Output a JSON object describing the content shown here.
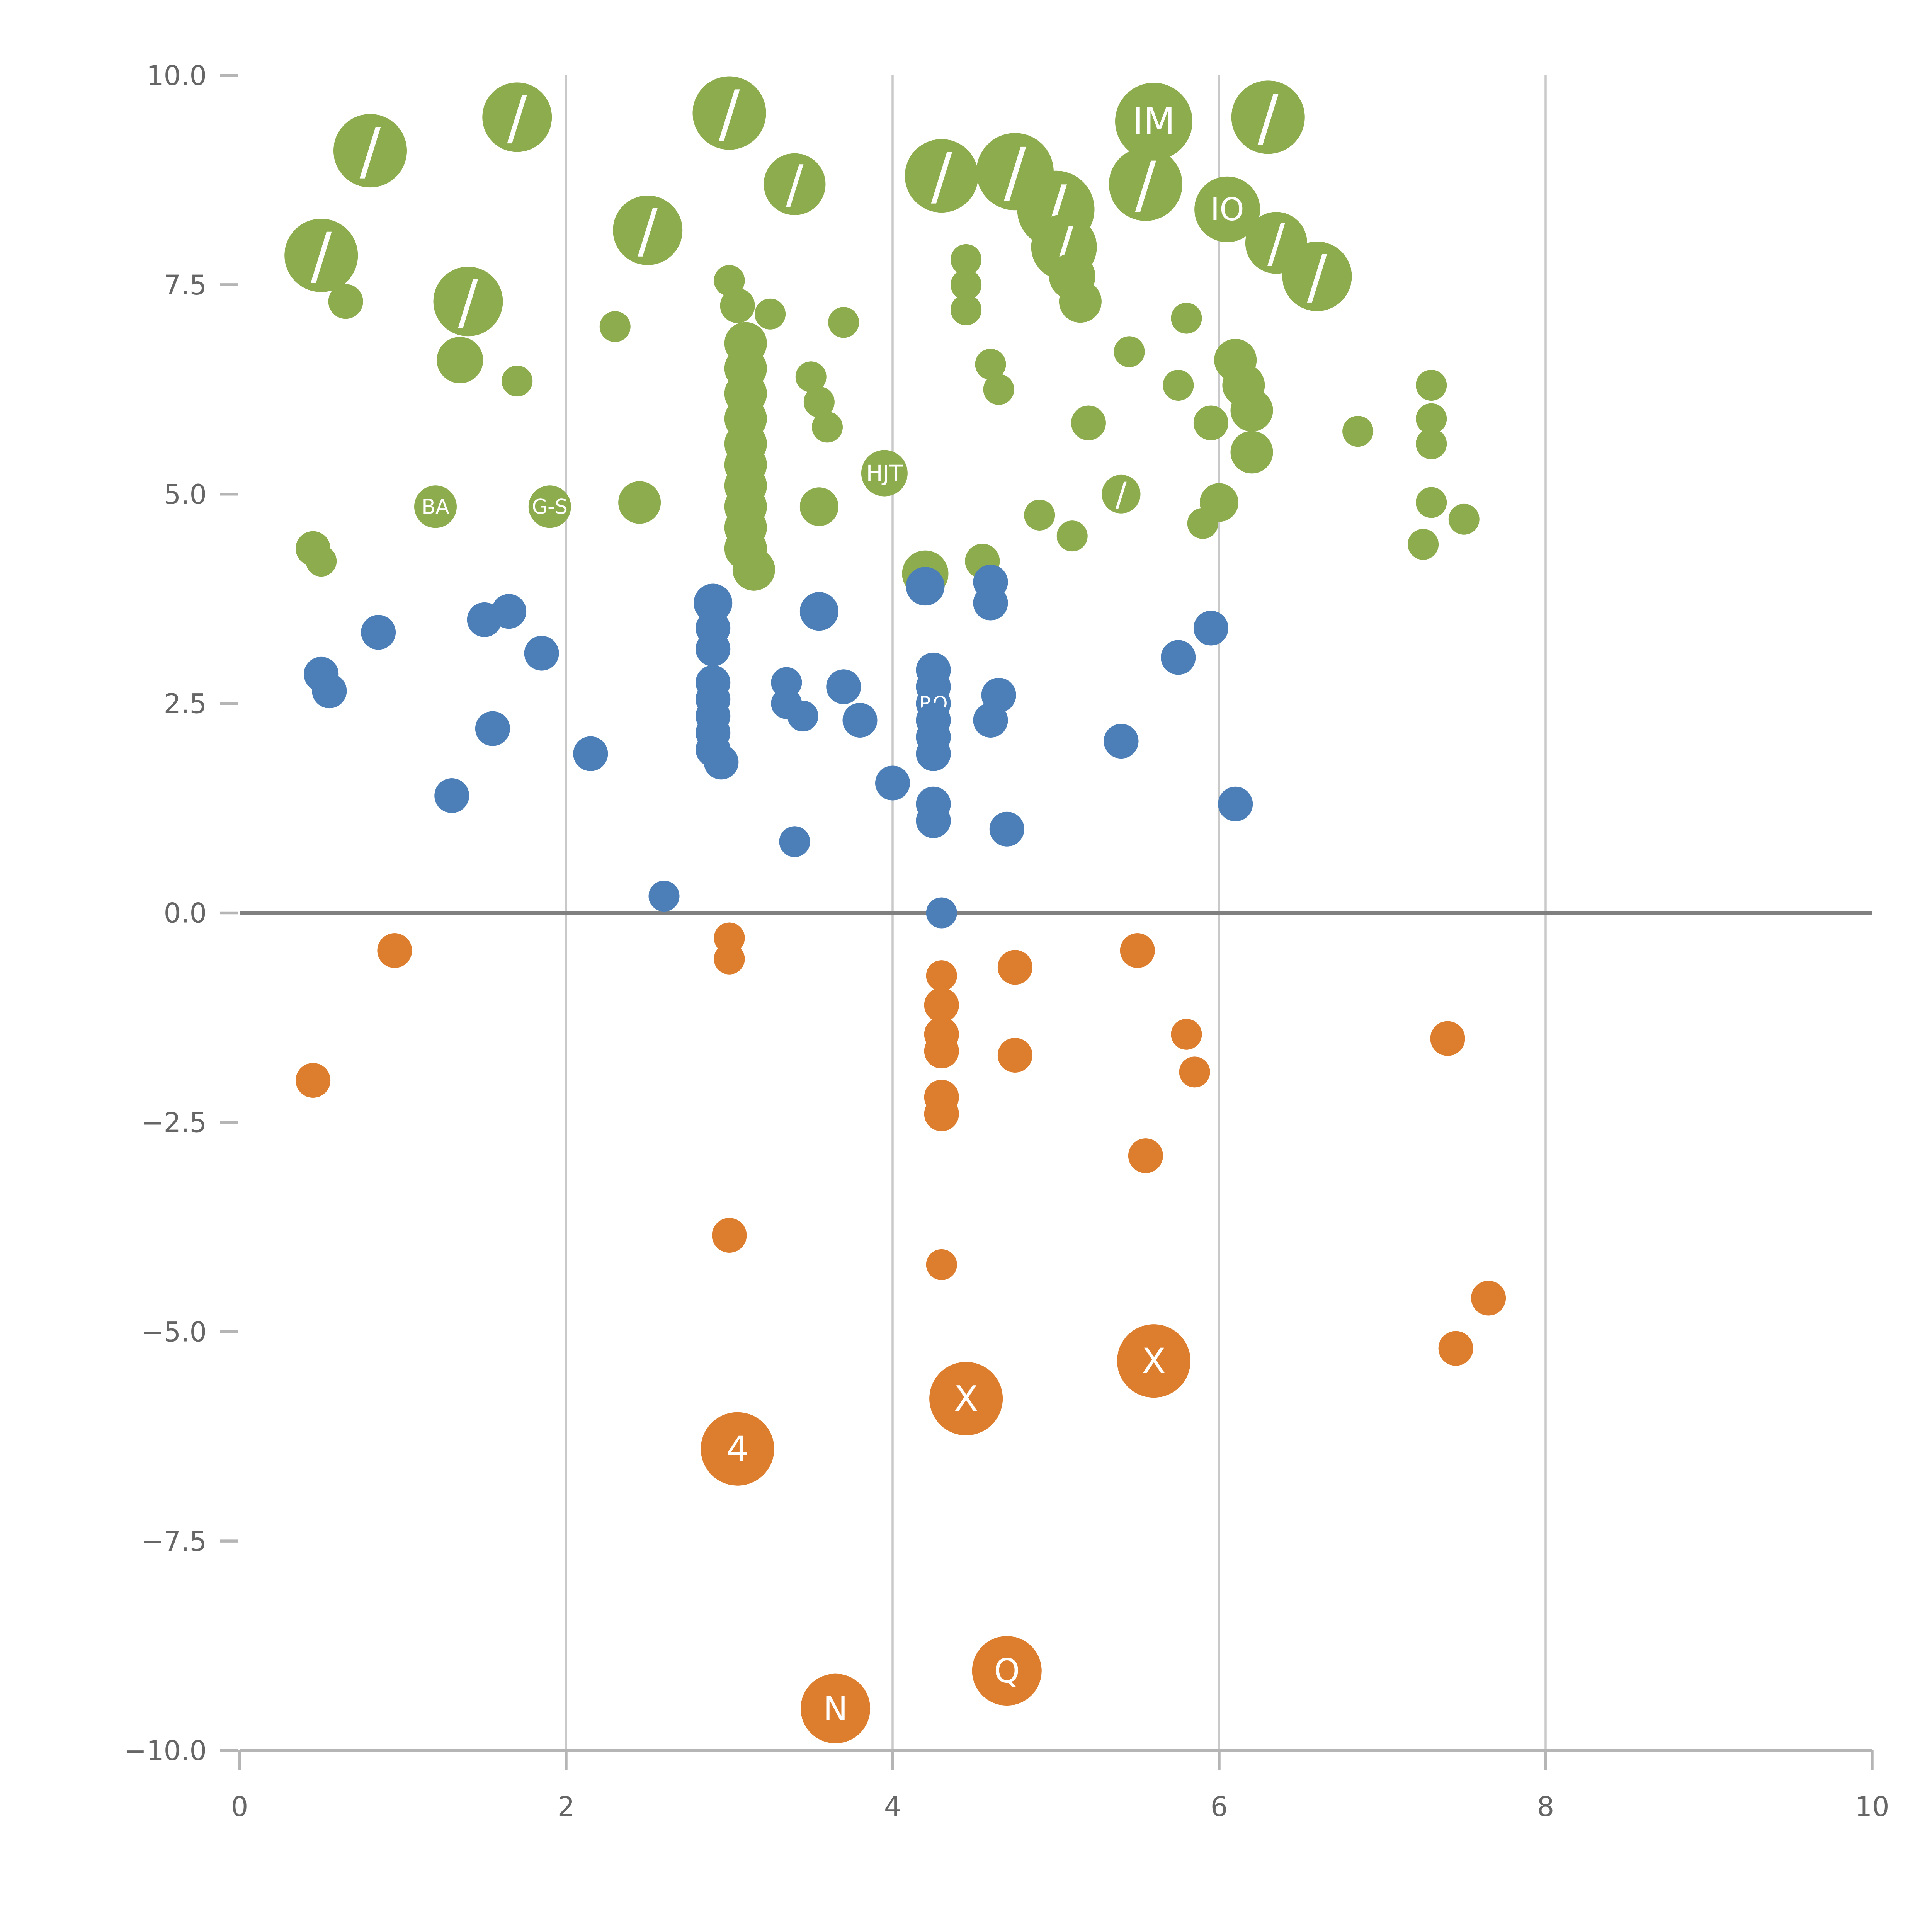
{
  "chart_data": {
    "type": "scatter",
    "title": "",
    "xlabel": "",
    "ylabel": "",
    "xlim": [
      0,
      10
    ],
    "ylim": [
      -10,
      10
    ],
    "grid": "vertical-only",
    "legend": "none",
    "gridlines_x": [
      2,
      4,
      6,
      8
    ],
    "zero_line_y": 0,
    "colors": {
      "green": "#8dac4d",
      "blue": "#4c7fb8",
      "orange": "#dd7e2e",
      "grid": "#c9c9c9",
      "zero_line": "#808080",
      "axis": "#b5b5b5",
      "tick_label": "#666666",
      "bubble_label": "#ffffff"
    },
    "x_ticks": [
      {
        "v": 0,
        "label": "0"
      },
      {
        "v": 2,
        "label": "2"
      },
      {
        "v": 4,
        "label": "4"
      },
      {
        "v": 6,
        "label": "6"
      },
      {
        "v": 8,
        "label": "8"
      },
      {
        "v": 10,
        "label": "10"
      }
    ],
    "y_ticks": [
      {
        "v": 10,
        "label": "10.0"
      },
      {
        "v": 7.5,
        "label": "7.5"
      },
      {
        "v": 5,
        "label": "5.0"
      },
      {
        "v": 2.5,
        "label": "2.5"
      },
      {
        "v": 0,
        "label": "0.0"
      },
      {
        "v": -2.5,
        "label": "−2.5"
      },
      {
        "v": -5,
        "label": "−5.0"
      },
      {
        "v": -7.5,
        "label": "−7.5"
      },
      {
        "v": -10,
        "label": "−10.0"
      }
    ],
    "series": [
      {
        "name": "green-group",
        "color": "#8dac4d",
        "points": [
          [
            0.8,
            9.1,
            19,
            "/"
          ],
          [
            1.7,
            9.5,
            18,
            "/"
          ],
          [
            3.0,
            9.55,
            19,
            "/"
          ],
          [
            3.4,
            8.7,
            16,
            "/"
          ],
          [
            4.3,
            8.8,
            19,
            "/"
          ],
          [
            4.75,
            8.85,
            20,
            "/"
          ],
          [
            5.6,
            9.45,
            20,
            "IM"
          ],
          [
            6.3,
            9.5,
            19,
            "/"
          ],
          [
            5.55,
            8.7,
            19,
            "/"
          ],
          [
            6.05,
            8.4,
            17,
            "IO"
          ],
          [
            6.35,
            8.0,
            16,
            "/"
          ],
          [
            2.5,
            8.15,
            18,
            "/"
          ],
          [
            0.5,
            7.85,
            19,
            "/"
          ],
          [
            0.65,
            7.3,
            9
          ],
          [
            1.4,
            7.3,
            18,
            "/"
          ],
          [
            1.35,
            6.6,
            12
          ],
          [
            1.7,
            6.35,
            8
          ],
          [
            2.3,
            7.0,
            8
          ],
          [
            3.0,
            7.55,
            8
          ],
          [
            3.05,
            7.25,
            9
          ],
          [
            3.25,
            7.15,
            8
          ],
          [
            3.1,
            6.8,
            11
          ],
          [
            3.1,
            6.5,
            11
          ],
          [
            3.1,
            6.2,
            11
          ],
          [
            3.1,
            5.9,
            11
          ],
          [
            3.1,
            5.6,
            11
          ],
          [
            3.1,
            5.35,
            11
          ],
          [
            3.1,
            5.1,
            11
          ],
          [
            3.1,
            4.85,
            11
          ],
          [
            3.1,
            4.6,
            11
          ],
          [
            3.1,
            4.35,
            11
          ],
          [
            3.15,
            4.1,
            11
          ],
          [
            3.5,
            6.4,
            8
          ],
          [
            3.55,
            6.1,
            8
          ],
          [
            3.6,
            5.8,
            8
          ],
          [
            3.7,
            7.05,
            8
          ],
          [
            3.55,
            4.85,
            10
          ],
          [
            3.95,
            5.25,
            12,
            "HJT"
          ],
          [
            4.45,
            7.8,
            8
          ],
          [
            4.45,
            7.5,
            8
          ],
          [
            4.45,
            7.2,
            8
          ],
          [
            4.6,
            6.55,
            8
          ],
          [
            4.65,
            6.25,
            8
          ],
          [
            5.0,
            8.4,
            20,
            "/"
          ],
          [
            5.05,
            7.95,
            17,
            "/"
          ],
          [
            5.1,
            7.6,
            12
          ],
          [
            5.15,
            7.3,
            11
          ],
          [
            5.2,
            5.85,
            9
          ],
          [
            5.1,
            4.5,
            8
          ],
          [
            4.9,
            4.75,
            8
          ],
          [
            5.45,
            6.7,
            8
          ],
          [
            5.4,
            5.0,
            10,
            "/"
          ],
          [
            5.8,
            7.1,
            8
          ],
          [
            5.75,
            6.3,
            8
          ],
          [
            6.1,
            6.6,
            11
          ],
          [
            6.15,
            6.3,
            11
          ],
          [
            6.2,
            6.0,
            11
          ],
          [
            6.2,
            5.5,
            11
          ],
          [
            5.95,
            5.85,
            9
          ],
          [
            6.0,
            4.9,
            10
          ],
          [
            5.9,
            4.65,
            8
          ],
          [
            6.6,
            7.6,
            18,
            "/"
          ],
          [
            6.85,
            5.75,
            8
          ],
          [
            7.3,
            6.3,
            8
          ],
          [
            7.3,
            5.9,
            8
          ],
          [
            7.3,
            5.6,
            8
          ],
          [
            7.3,
            4.9,
            8
          ],
          [
            7.25,
            4.4,
            8
          ],
          [
            7.5,
            4.7,
            8
          ],
          [
            0.45,
            4.35,
            9
          ],
          [
            0.5,
            4.2,
            8
          ],
          [
            1.2,
            4.85,
            11,
            "BA"
          ],
          [
            1.9,
            4.85,
            11,
            "G-S"
          ],
          [
            2.45,
            4.9,
            11
          ],
          [
            4.2,
            4.05,
            12
          ],
          [
            4.55,
            4.2,
            9
          ]
        ]
      },
      {
        "name": "blue-group",
        "color": "#4c7fb8",
        "points": [
          [
            0.5,
            2.85,
            9
          ],
          [
            0.55,
            2.65,
            9
          ],
          [
            0.85,
            3.35,
            9
          ],
          [
            1.3,
            1.4,
            9
          ],
          [
            1.5,
            3.5,
            9
          ],
          [
            1.65,
            3.6,
            9
          ],
          [
            1.55,
            2.2,
            9
          ],
          [
            1.85,
            3.1,
            9
          ],
          [
            2.15,
            1.9,
            9
          ],
          [
            2.6,
            0.2,
            8
          ],
          [
            2.9,
            3.7,
            10
          ],
          [
            2.9,
            3.4,
            9
          ],
          [
            2.9,
            3.15,
            9
          ],
          [
            2.9,
            2.75,
            9
          ],
          [
            2.9,
            2.55,
            9
          ],
          [
            2.9,
            2.35,
            9
          ],
          [
            2.9,
            2.15,
            9
          ],
          [
            2.9,
            1.95,
            9
          ],
          [
            2.95,
            1.8,
            9
          ],
          [
            3.35,
            2.75,
            8
          ],
          [
            3.35,
            2.5,
            8
          ],
          [
            3.45,
            2.35,
            8
          ],
          [
            3.55,
            3.6,
            10
          ],
          [
            3.7,
            2.7,
            9
          ],
          [
            3.8,
            2.3,
            9
          ],
          [
            3.4,
            0.85,
            8
          ],
          [
            4.0,
            1.55,
            9
          ],
          [
            4.2,
            3.9,
            10
          ],
          [
            4.25,
            2.9,
            9
          ],
          [
            4.25,
            2.7,
            9
          ],
          [
            4.25,
            2.5,
            9,
            "RO"
          ],
          [
            4.25,
            2.3,
            9
          ],
          [
            4.25,
            2.1,
            9
          ],
          [
            4.25,
            1.9,
            9
          ],
          [
            4.25,
            1.3,
            9
          ],
          [
            4.25,
            1.1,
            9
          ],
          [
            4.3,
            0.0,
            8
          ],
          [
            4.6,
            3.95,
            9
          ],
          [
            4.6,
            3.7,
            9
          ],
          [
            4.65,
            2.6,
            9
          ],
          [
            4.6,
            2.3,
            9
          ],
          [
            4.7,
            1.0,
            9
          ],
          [
            5.4,
            2.05,
            9
          ],
          [
            5.75,
            3.05,
            9
          ],
          [
            5.95,
            3.4,
            9
          ],
          [
            6.1,
            1.3,
            9
          ]
        ]
      },
      {
        "name": "orange-group",
        "color": "#dd7e2e",
        "points": [
          [
            0.45,
            -2.0,
            9
          ],
          [
            0.95,
            -0.45,
            9
          ],
          [
            3.0,
            -0.3,
            8
          ],
          [
            3.0,
            -0.55,
            8
          ],
          [
            4.3,
            -0.75,
            8
          ],
          [
            4.3,
            -1.1,
            9
          ],
          [
            4.3,
            -1.45,
            9
          ],
          [
            4.3,
            -1.65,
            9
          ],
          [
            4.3,
            -2.2,
            9
          ],
          [
            4.3,
            -2.4,
            9
          ],
          [
            4.75,
            -0.65,
            9
          ],
          [
            4.75,
            -1.7,
            9
          ],
          [
            5.5,
            -0.45,
            9
          ],
          [
            5.55,
            -2.9,
            9
          ],
          [
            5.8,
            -1.45,
            8
          ],
          [
            5.85,
            -1.9,
            8
          ],
          [
            3.0,
            -3.85,
            9
          ],
          [
            4.3,
            -4.2,
            8
          ],
          [
            3.05,
            -6.4,
            19,
            "4"
          ],
          [
            4.45,
            -5.8,
            19,
            "X"
          ],
          [
            5.6,
            -5.35,
            19,
            "X"
          ],
          [
            7.4,
            -1.5,
            9
          ],
          [
            7.65,
            -4.6,
            9
          ],
          [
            7.45,
            -5.2,
            9
          ],
          [
            3.65,
            -9.5,
            18,
            "N"
          ],
          [
            4.7,
            -9.05,
            18,
            "Q"
          ]
        ]
      }
    ]
  }
}
